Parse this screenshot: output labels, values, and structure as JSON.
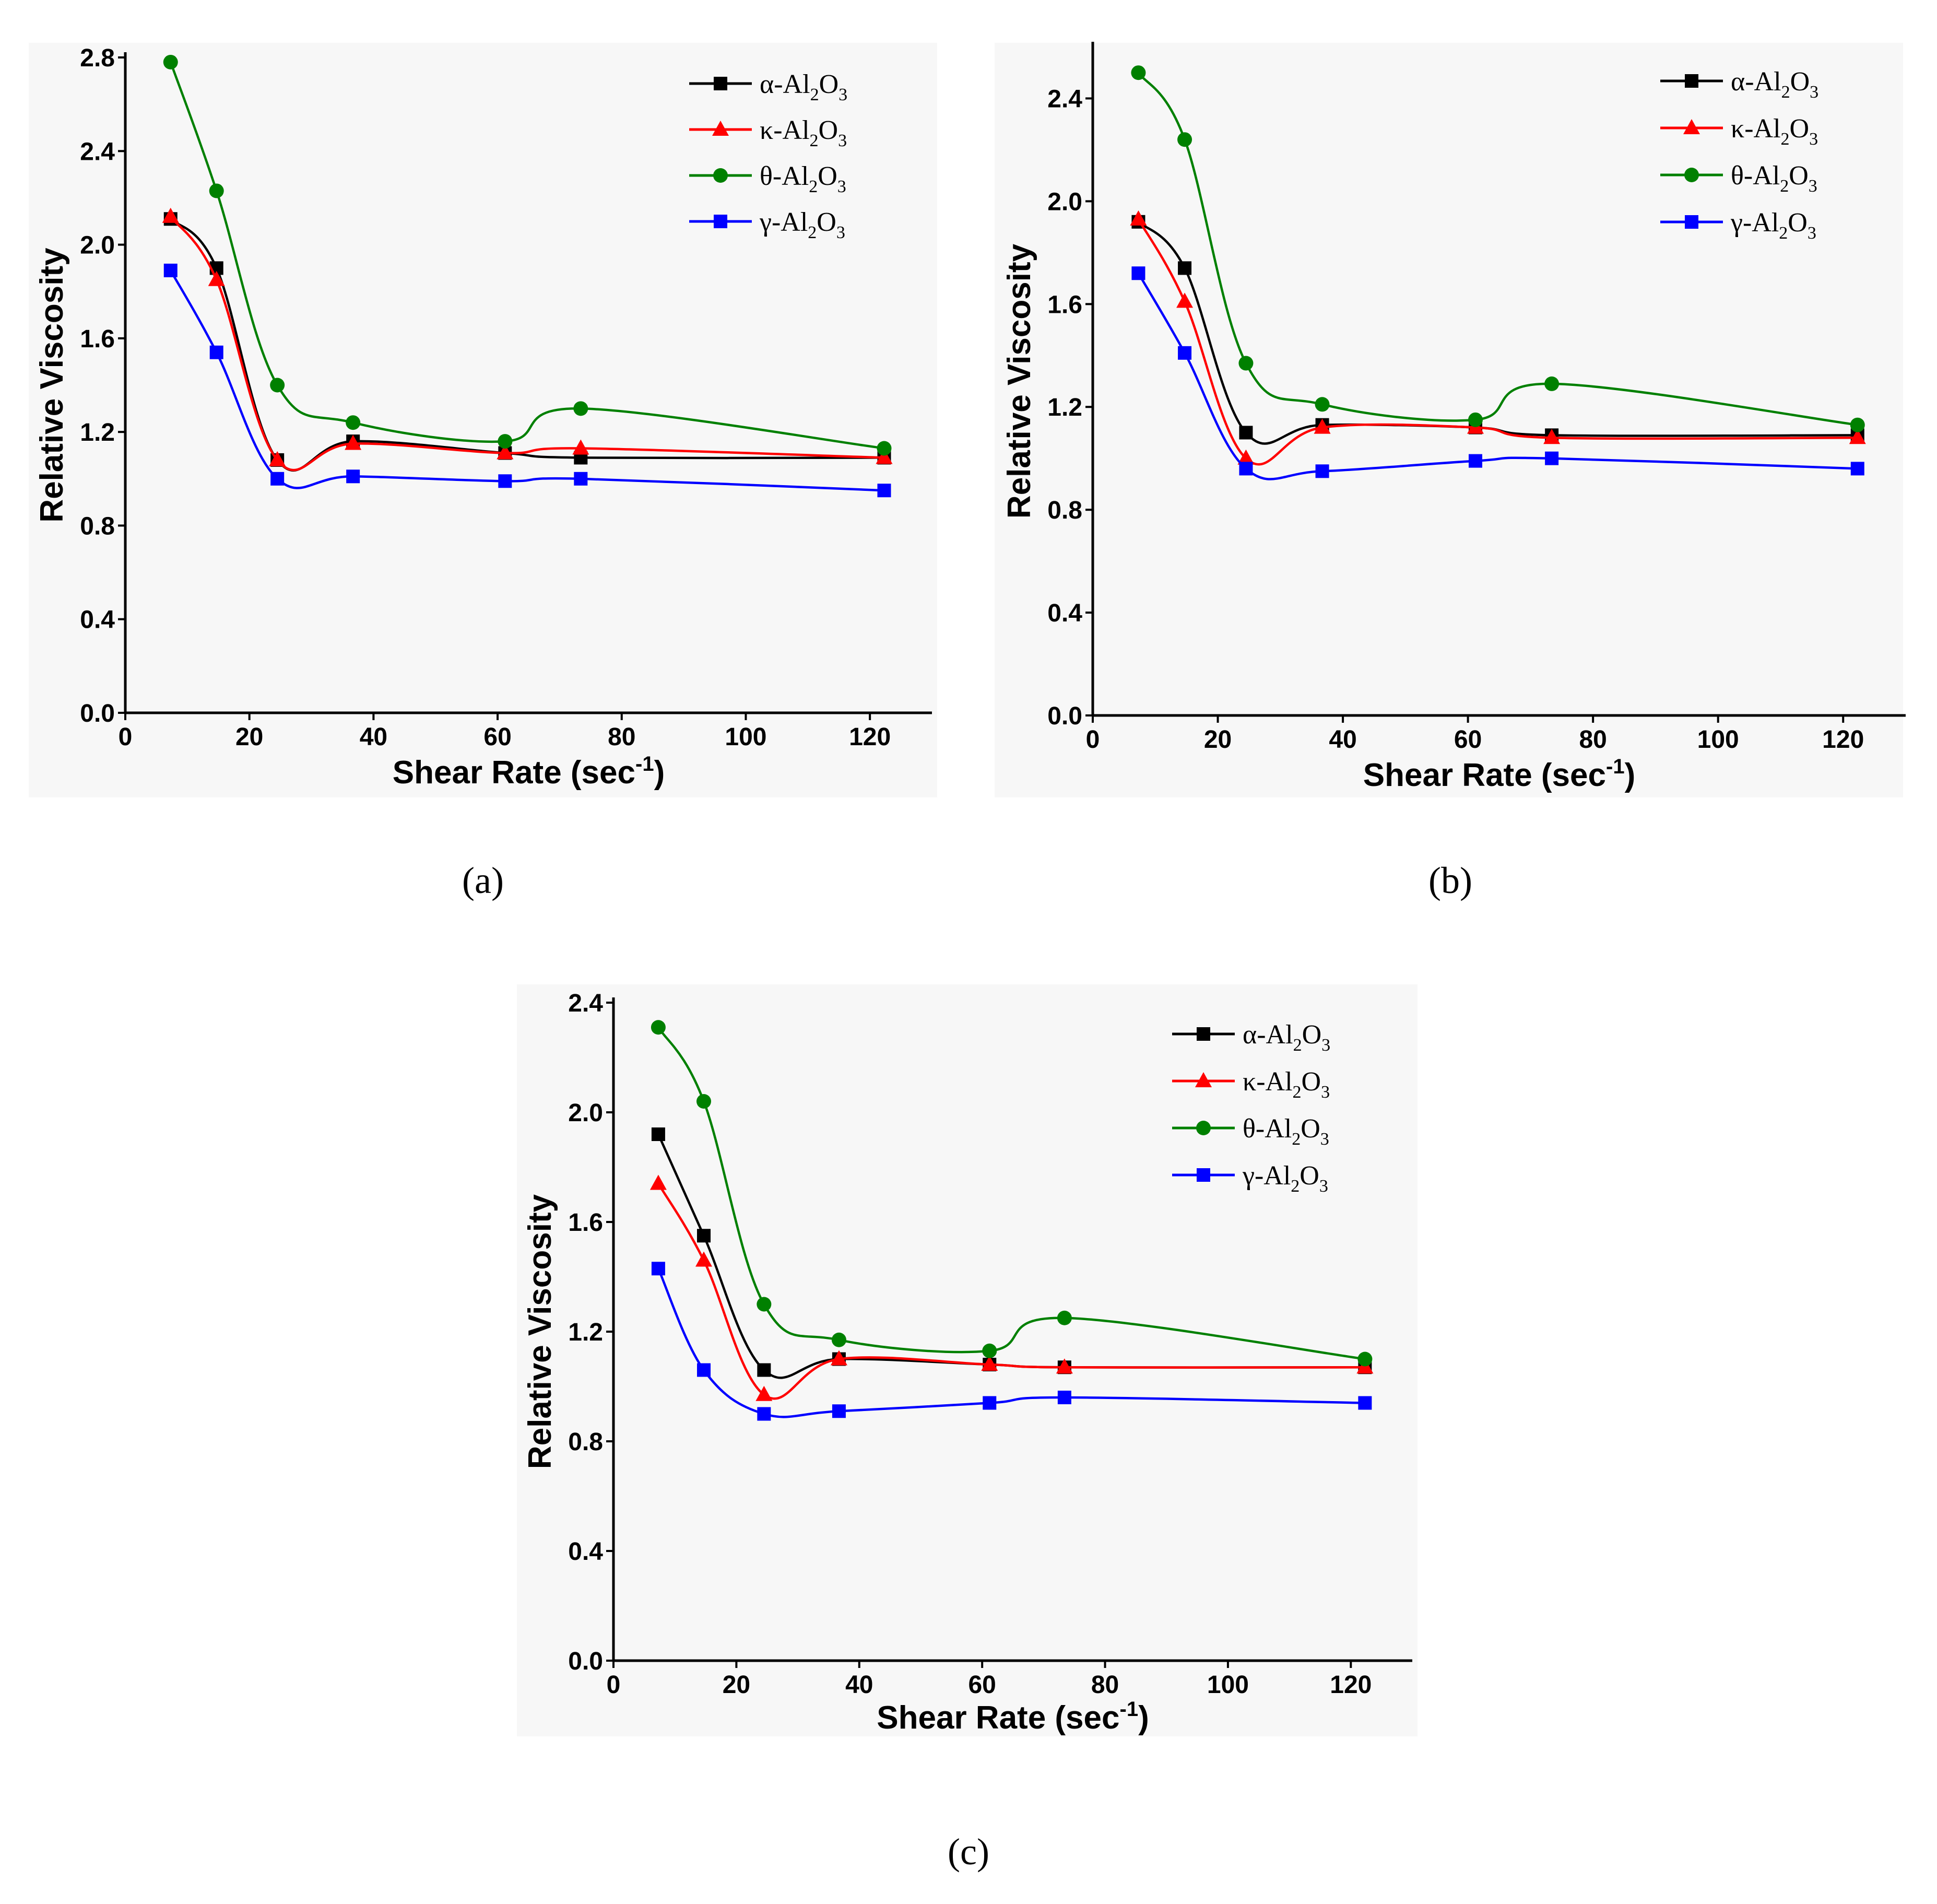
{
  "chart_data": [
    {
      "type": "line",
      "panel_label": "(a)",
      "xlabel": "Shear Rate (sec",
      "xlabel_sup": "-1",
      "xlabel_close": ")",
      "ylabel": "Relative Viscosity",
      "xlim": [
        0,
        130
      ],
      "ylim": [
        0,
        2.8
      ],
      "xticks": [
        "0",
        "20",
        "40",
        "60",
        "80",
        "100",
        "120"
      ],
      "yticks": [
        "0.0",
        "0.4",
        "0.8",
        "1.2",
        "1.6",
        "2.0",
        "2.4",
        "2.8"
      ],
      "x": [
        7.3,
        14.7,
        24.5,
        36.7,
        61.2,
        73.4,
        122.3
      ],
      "legend_position": "top-right",
      "series": [
        {
          "name": "α-Al2O3",
          "prefix": "α-Al",
          "sub1": "2",
          "mid": "O",
          "sub2": "3",
          "color": "#000000",
          "marker": "square",
          "values": [
            2.11,
            1.9,
            1.08,
            1.16,
            1.11,
            1.09,
            1.09
          ]
        },
        {
          "name": "κ-Al2O3",
          "prefix": "κ-Al",
          "sub1": "2",
          "mid": "O",
          "sub2": "3",
          "color": "#ff0000",
          "marker": "triangle",
          "values": [
            2.12,
            1.85,
            1.08,
            1.15,
            1.11,
            1.13,
            1.09
          ]
        },
        {
          "name": "θ-Al2O3",
          "prefix": "θ-Al",
          "sub1": "2",
          "mid": "O",
          "sub2": "3",
          "color": "#008000",
          "marker": "circle",
          "values": [
            2.78,
            2.23,
            1.4,
            1.24,
            1.16,
            1.3,
            1.13
          ]
        },
        {
          "name": "γ-Al2O3",
          "prefix": "γ-Al",
          "sub1": "2",
          "mid": "O",
          "sub2": "3",
          "color": "#0000ff",
          "marker": "square",
          "values": [
            1.89,
            1.54,
            1.0,
            1.01,
            0.99,
            1.0,
            0.95
          ]
        }
      ]
    },
    {
      "type": "line",
      "panel_label": "(b)",
      "xlabel": "Shear Rate (sec",
      "xlabel_sup": "-1",
      "xlabel_close": ")",
      "ylabel": "Relative Viscosity",
      "xlim": [
        0,
        130
      ],
      "ylim": [
        0,
        2.6
      ],
      "xticks": [
        "0",
        "20",
        "40",
        "60",
        "80",
        "100",
        "120"
      ],
      "yticks": [
        "0.0",
        "0.4",
        "0.8",
        "1.2",
        "1.6",
        "2.0",
        "2.4"
      ],
      "x": [
        7.3,
        14.7,
        24.5,
        36.7,
        61.2,
        73.4,
        122.3
      ],
      "legend_position": "top-right",
      "series": [
        {
          "name": "α-Al2O3",
          "prefix": "α-Al",
          "sub1": "2",
          "mid": "O",
          "sub2": "3",
          "color": "#000000",
          "marker": "square",
          "values": [
            1.92,
            1.74,
            1.1,
            1.13,
            1.12,
            1.09,
            1.09
          ]
        },
        {
          "name": "κ-Al2O3",
          "prefix": "κ-Al",
          "sub1": "2",
          "mid": "O",
          "sub2": "3",
          "color": "#ff0000",
          "marker": "triangle",
          "values": [
            1.93,
            1.61,
            1.0,
            1.12,
            1.12,
            1.08,
            1.08
          ]
        },
        {
          "name": "θ-Al2O3",
          "prefix": "θ-Al",
          "sub1": "2",
          "mid": "O",
          "sub2": "3",
          "color": "#008000",
          "marker": "circle",
          "values": [
            2.5,
            2.24,
            1.37,
            1.21,
            1.15,
            1.29,
            1.13
          ]
        },
        {
          "name": "γ-Al2O3",
          "prefix": "γ-Al",
          "sub1": "2",
          "mid": "O",
          "sub2": "3",
          "color": "#0000ff",
          "marker": "square",
          "values": [
            1.72,
            1.41,
            0.96,
            0.95,
            0.99,
            1.0,
            0.96
          ]
        }
      ]
    },
    {
      "type": "line",
      "panel_label": "(c)",
      "xlabel": "Shear Rate (sec",
      "xlabel_sup": "-1",
      "xlabel_close": ")",
      "ylabel": "Relative Viscosity",
      "xlim": [
        0,
        130
      ],
      "ylim": [
        0,
        2.4
      ],
      "xticks": [
        "0",
        "20",
        "40",
        "60",
        "80",
        "100",
        "120"
      ],
      "yticks": [
        "0.0",
        "0.4",
        "0.8",
        "1.2",
        "1.6",
        "2.0",
        "2.4"
      ],
      "x": [
        7.3,
        14.7,
        24.5,
        36.7,
        61.2,
        73.4,
        122.3
      ],
      "legend_position": "top-right",
      "series": [
        {
          "name": "α-Al2O3",
          "prefix": "α-Al",
          "sub1": "2",
          "mid": "O",
          "sub2": "3",
          "color": "#000000",
          "marker": "square",
          "values": [
            1.92,
            1.55,
            1.06,
            1.1,
            1.08,
            1.07,
            1.07
          ]
        },
        {
          "name": "κ-Al2O3",
          "prefix": "κ-Al",
          "sub1": "2",
          "mid": "O",
          "sub2": "3",
          "color": "#ff0000",
          "marker": "triangle",
          "values": [
            1.74,
            1.46,
            0.97,
            1.1,
            1.08,
            1.07,
            1.07
          ]
        },
        {
          "name": "θ-Al2O3",
          "prefix": "θ-Al",
          "sub1": "2",
          "mid": "O",
          "sub2": "3",
          "color": "#008000",
          "marker": "circle",
          "values": [
            2.31,
            2.04,
            1.3,
            1.17,
            1.13,
            1.25,
            1.1
          ]
        },
        {
          "name": "γ-Al2O3",
          "prefix": "γ-Al",
          "sub1": "2",
          "mid": "O",
          "sub2": "3",
          "color": "#0000ff",
          "marker": "square",
          "values": [
            1.43,
            1.06,
            0.9,
            0.91,
            0.94,
            0.96,
            0.94
          ]
        }
      ]
    }
  ]
}
